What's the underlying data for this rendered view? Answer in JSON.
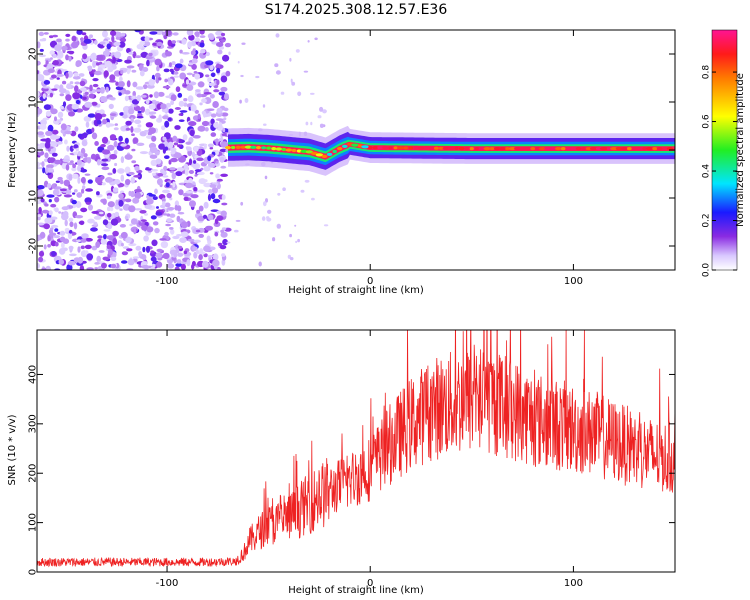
{
  "title": "S174.2025.308.12.57.E36",
  "colors": {
    "snr_line": "#ee2222"
  },
  "chart_data": [
    {
      "type": "heatmap",
      "xlabel": "Height of straight line (km)",
      "ylabel": "Frequency (Hz)",
      "xlim": [
        -164,
        150
      ],
      "ylim": [
        -25,
        25
      ],
      "x_ticks": [
        -100,
        0,
        100
      ],
      "y_ticks": [
        -20,
        -10,
        0,
        10,
        20
      ],
      "colorbar": {
        "label": "Normalized spectral amplitude",
        "ticks": [
          "0.0",
          "0.2",
          "0.4",
          "0.6",
          "0.8"
        ],
        "tick_values": [
          0.0,
          0.2,
          0.4,
          0.6,
          0.8
        ],
        "range": [
          0,
          0.97
        ],
        "colormap": "rainbow (white-purple-blue-cyan-green-yellow-red-magenta)"
      },
      "noise_region_x": [
        -164,
        -70
      ],
      "ridge": [
        {
          "x": -70,
          "y": 0.5,
          "v": 0.4
        },
        {
          "x": -60,
          "y": 0.6,
          "v": 0.5
        },
        {
          "x": -50,
          "y": 0.4,
          "v": 0.6
        },
        {
          "x": -40,
          "y": 0.0,
          "v": 0.85
        },
        {
          "x": -30,
          "y": -0.4,
          "v": 0.7
        },
        {
          "x": -22,
          "y": -1.4,
          "v": 0.6
        },
        {
          "x": -15,
          "y": 0.3,
          "v": 0.8
        },
        {
          "x": -10,
          "y": 1.2,
          "v": 0.9
        },
        {
          "x": 0,
          "y": 0.5,
          "v": 0.97
        },
        {
          "x": 50,
          "y": 0.3,
          "v": 0.97
        },
        {
          "x": 100,
          "y": 0.3,
          "v": 0.97
        },
        {
          "x": 150,
          "y": 0.3,
          "v": 0.97
        }
      ]
    },
    {
      "type": "line",
      "xlabel": "Height of straight line (km)",
      "ylabel": "SNR (10 * v/v)",
      "xlim": [
        -164,
        150
      ],
      "ylim": [
        0,
        490
      ],
      "x_ticks": [
        -100,
        0,
        100
      ],
      "y_ticks": [
        0,
        100,
        200,
        300,
        400
      ],
      "series": [
        {
          "x": [
            -164,
            -140,
            -120,
            -100,
            -80,
            -66,
            -62,
            -60,
            -55,
            -50,
            -45,
            -40,
            -30,
            -20,
            -10,
            0,
            10,
            20,
            30,
            40,
            50,
            60,
            70,
            80,
            90,
            100,
            110,
            120,
            130,
            140,
            150
          ],
          "y": [
            20,
            20,
            20,
            20,
            20,
            22,
            40,
            60,
            80,
            95,
            100,
            110,
            140,
            165,
            185,
            210,
            260,
            300,
            330,
            340,
            350,
            345,
            330,
            310,
            300,
            290,
            280,
            265,
            250,
            235,
            230
          ]
        }
      ]
    }
  ]
}
